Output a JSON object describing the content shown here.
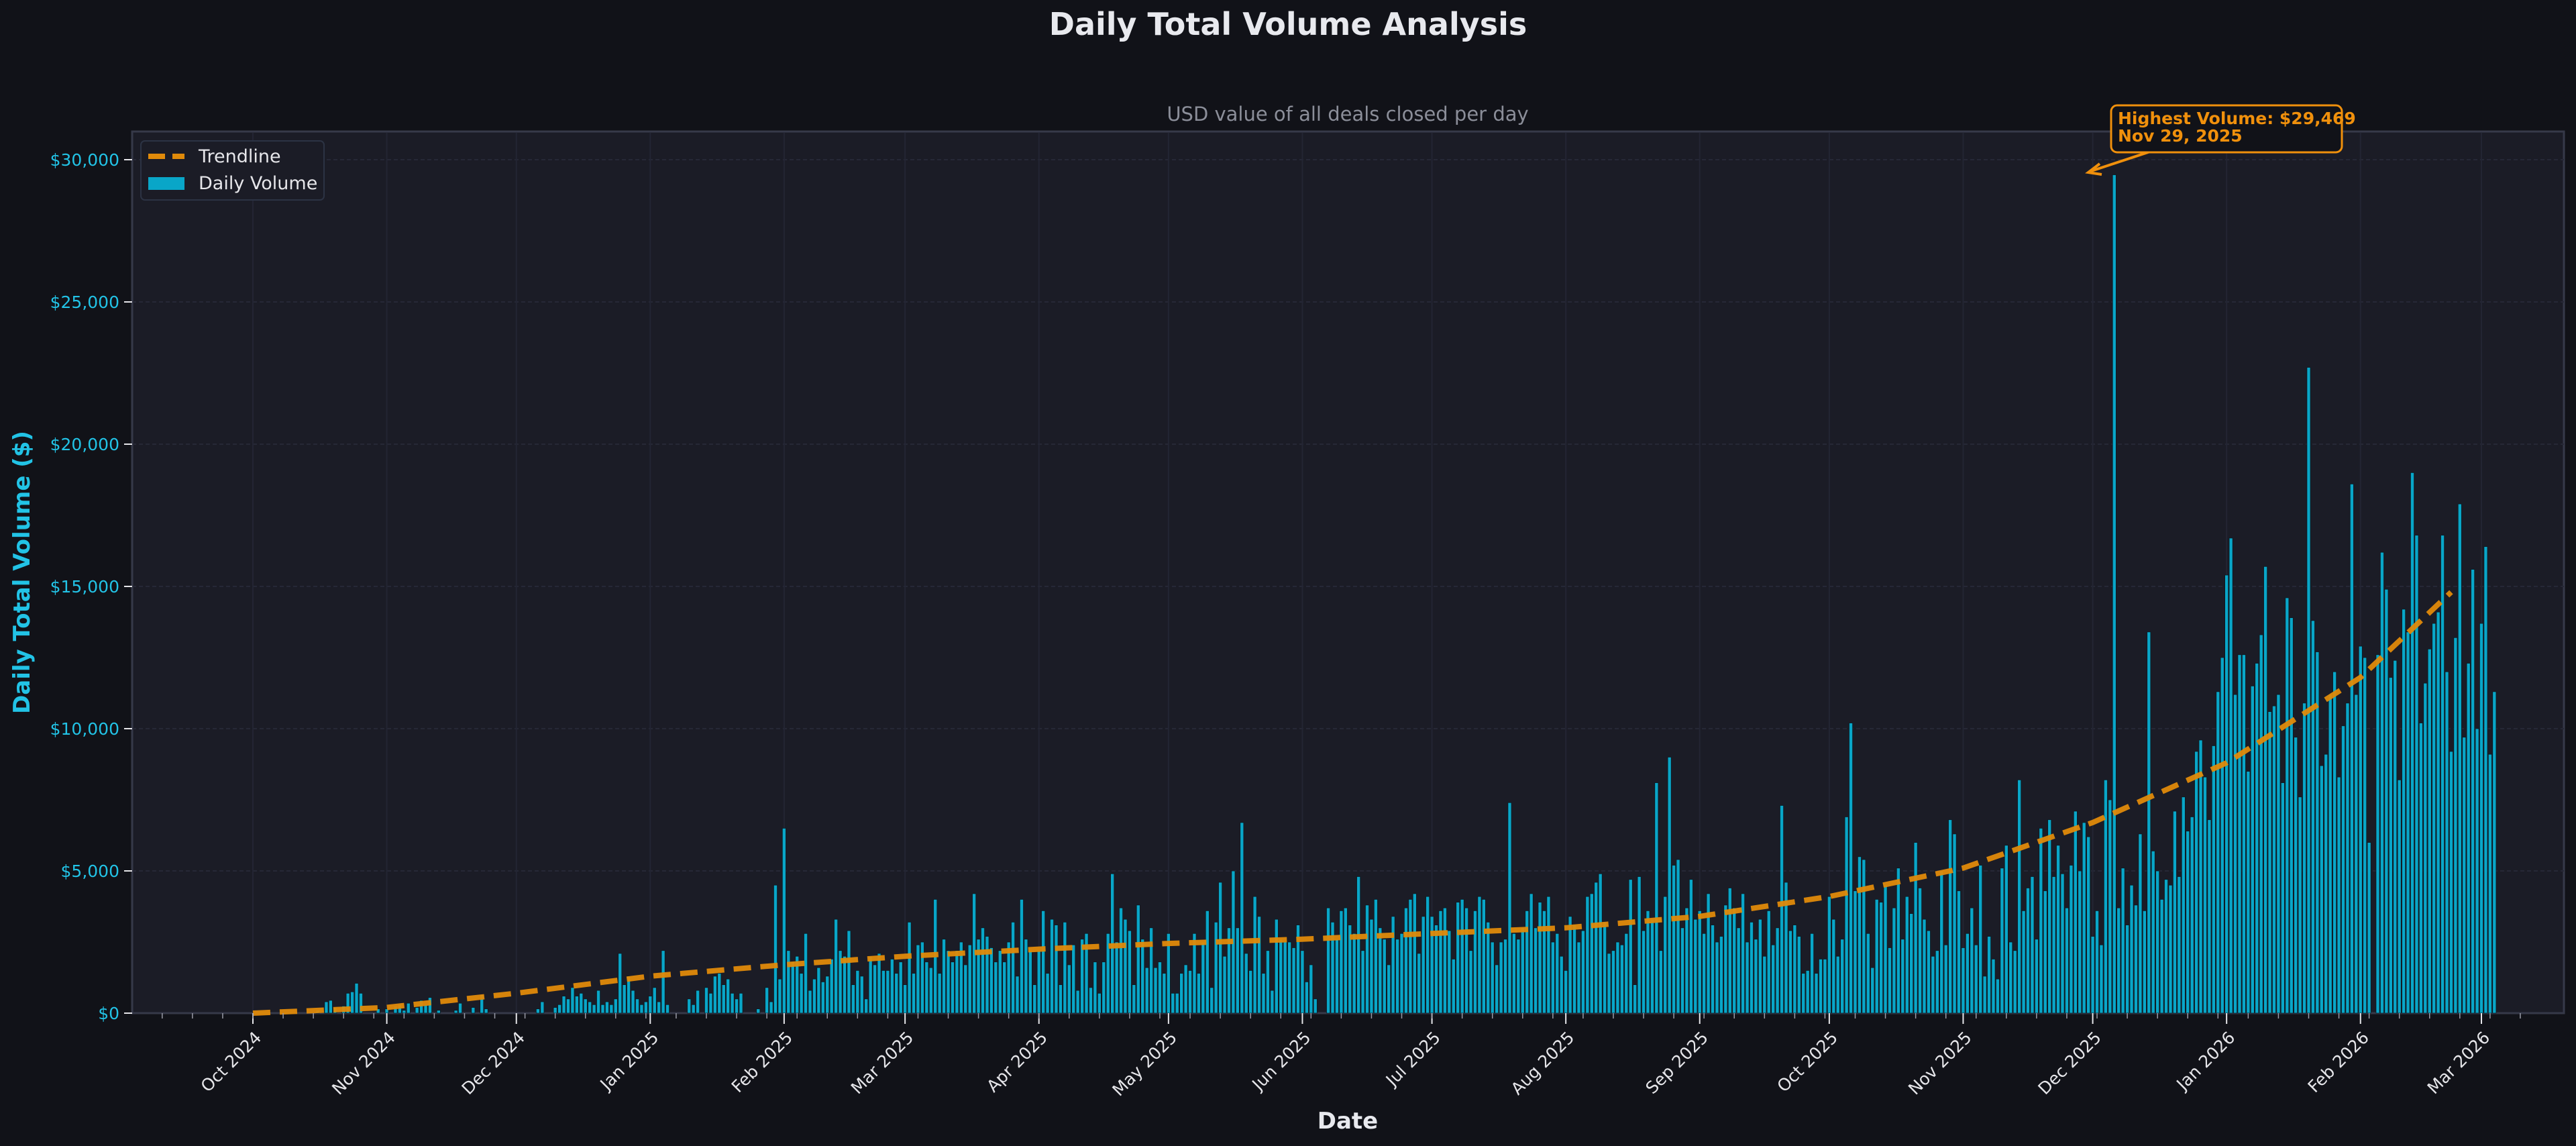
{
  "title": "Daily Total Volume Analysis",
  "subtitle": "USD value of all deals closed per day",
  "xlabel": "Date",
  "ylabel": "Daily Total Volume ($)",
  "legend": {
    "trend_label": "Trendline",
    "bars_label": "Daily Volume"
  },
  "annotation": {
    "line1": "Highest Volume: $29,469",
    "line2": "Nov 29, 2025"
  },
  "colors": {
    "background": "#111218",
    "plot_background": "#1b1c26",
    "bar": "#09a6c8",
    "trend": "#e08a0a",
    "annotation": "#f0900c",
    "ytick": "#22c3e6"
  },
  "chart_data": {
    "type": "bar",
    "title": "Daily Total Volume Analysis",
    "subtitle": "USD value of all deals closed per day",
    "xlabel": "Date",
    "ylabel": "Daily Total Volume ($)",
    "ylim": [
      0,
      31000
    ],
    "yticks": [
      0,
      5000,
      10000,
      15000,
      20000,
      25000,
      30000
    ],
    "ytick_labels": [
      "$0",
      "$5,000",
      "$10,000",
      "$15,000",
      "$20,000",
      "$25,000",
      "$30,000"
    ],
    "xticks": [
      "Oct 2024",
      "Nov 2024",
      "Dec 2024",
      "Jan 2025",
      "Feb 2025",
      "Mar 2025",
      "Apr 2025",
      "May 2025",
      "Jun 2025",
      "Jul 2025",
      "Aug 2025",
      "Sep 2025",
      "Oct 2025",
      "Nov 2025",
      "Dec 2025",
      "Jan 2026",
      "Feb 2026",
      "Mar 2026"
    ],
    "xtick_days": [
      0,
      31,
      61,
      92,
      123,
      151,
      182,
      212,
      243,
      273,
      304,
      335,
      365,
      396,
      426,
      457,
      488,
      516
    ],
    "x_origin": "2024-10-01",
    "grid": true,
    "legend_position": "upper left",
    "series": [
      {
        "name": "Daily Volume",
        "type": "bar",
        "start_day": 12,
        "values": [
          0,
          0,
          0,
          100,
          0,
          400,
          450,
          200,
          0,
          250,
          700,
          750,
          1050,
          700,
          0,
          0,
          0,
          150,
          0,
          150,
          0,
          250,
          300,
          100,
          350,
          0,
          200,
          450,
          300,
          550,
          0,
          100,
          0,
          0,
          0,
          100,
          350,
          0,
          0,
          200,
          0,
          650,
          150,
          0,
          0,
          0,
          0,
          0,
          0,
          0,
          0,
          0,
          0,
          0,
          150,
          400,
          0,
          0,
          200,
          300,
          600,
          500,
          900,
          600,
          700,
          500,
          400,
          300,
          800,
          300,
          400,
          300,
          500,
          2100,
          1000,
          1300,
          800,
          500,
          300,
          400,
          600,
          900,
          400,
          2200,
          300,
          0,
          0,
          0,
          0,
          500,
          300,
          800,
          0,
          900,
          700,
          1300,
          1400,
          1000,
          1200,
          700,
          500,
          700,
          0,
          0,
          0,
          150,
          0,
          900,
          400,
          4500,
          1200,
          6500,
          2200,
          1800,
          2000,
          1400,
          2800,
          800,
          1200,
          1600,
          1100,
          1300,
          1900,
          3300,
          2200,
          2000,
          2900,
          1000,
          1500,
          1300,
          500,
          2000,
          1700,
          2100,
          1500,
          1500,
          1900,
          1400,
          1800,
          1000,
          3200,
          1400,
          2400,
          2500,
          1800,
          1600,
          4000,
          1400,
          2600,
          2200,
          1800,
          2200,
          2500,
          1700,
          2400,
          4200,
          2600,
          3000,
          2700,
          2300,
          1800,
          2200,
          1800,
          2500,
          3200,
          1300,
          4000,
          2600,
          2200,
          1000,
          2200,
          3600,
          1400,
          3300,
          3100,
          1000,
          3200,
          1700,
          2400,
          800,
          2600,
          2800,
          900,
          1800,
          700,
          1800,
          2800,
          4900,
          2500,
          3700,
          3300,
          2900,
          1000,
          3800,
          2600,
          1600,
          3000,
          1600,
          1800,
          1400,
          2800,
          700,
          700,
          1400,
          1700,
          1500,
          2800,
          1400,
          2500,
          3600,
          900,
          3200,
          4600,
          2000,
          3000,
          5000,
          3000,
          6700,
          2100,
          1500,
          4100,
          3400,
          1400,
          2200,
          800,
          3300,
          2600,
          2500,
          2500,
          2300,
          3100,
          2200,
          1100,
          1700,
          500,
          0,
          0,
          3700,
          3200,
          2600,
          3600,
          3700,
          3100,
          2800,
          4800,
          2200,
          3800,
          3300,
          4000,
          3000,
          2600,
          1700,
          3400,
          2600,
          2800,
          3700,
          4000,
          4200,
          2100,
          3400,
          4100,
          3400,
          3100,
          3600,
          3700,
          2900,
          1900,
          3900,
          4000,
          3700,
          2200,
          3600,
          4100,
          4000,
          3200,
          2500,
          1700,
          2500,
          2600,
          7400,
          2800,
          2600,
          3000,
          3600,
          4200,
          3000,
          3900,
          3600,
          4100,
          2500,
          2800,
          2000,
          1500,
          3400,
          3100,
          2500,
          2900,
          4100,
          4200,
          4600,
          4900,
          3200,
          2100,
          2200,
          2500,
          2400,
          2800,
          4700,
          1000,
          4800,
          2900,
          3600,
          3300,
          8100,
          2200,
          4100,
          9000,
          5200,
          5400,
          3000,
          3700,
          4700,
          3300,
          3600,
          2800,
          4200,
          3100,
          2500,
          2700,
          3800,
          4400,
          3700,
          3000,
          4200,
          2500,
          3200,
          2600,
          3300,
          2000,
          3600,
          2400,
          3000,
          7300,
          4600,
          2900,
          3100,
          2700,
          1400,
          1500,
          2800,
          1400,
          1900,
          1900,
          4100,
          3300,
          2000,
          2600,
          6900,
          10200,
          4300,
          5500,
          5400,
          2800,
          1600,
          4000,
          3900,
          4500,
          2300,
          3700,
          5100,
          2600,
          4100,
          3500,
          6000,
          4400,
          3300,
          2900,
          2000,
          2200,
          5000,
          2400,
          6800,
          6300,
          4300,
          2300,
          2800,
          3700,
          2400,
          5200,
          1300,
          2700,
          1900,
          1200,
          5100,
          5900,
          2500,
          2200,
          8200,
          3600,
          4400,
          4800,
          2600,
          6500,
          4300,
          6800,
          4800,
          5900,
          4900,
          3700,
          5200,
          7100,
          5000,
          6700,
          6200,
          2700,
          3600,
          2400,
          8200,
          7500,
          29469,
          3700,
          5100,
          3100,
          4500,
          3800,
          6300,
          3600,
          13400,
          5700,
          5000,
          4000,
          4700,
          4500,
          7100,
          4800,
          7600,
          6400,
          6900,
          9200,
          9600,
          8300,
          6800,
          9400,
          11300,
          12500,
          15400,
          16700,
          11200,
          12600,
          12600,
          8500,
          11500,
          12300,
          13300,
          15700,
          10600,
          10800,
          11200,
          8100,
          14600,
          13900,
          9700,
          7600,
          10900,
          22700,
          13800,
          12700,
          8700,
          9100,
          11200,
          12000,
          8300,
          10100,
          10900,
          18600,
          11200,
          12900,
          12500,
          6000,
          0,
          12600,
          16200,
          14900,
          11800,
          12400,
          8200,
          14200,
          13400,
          19000,
          16800,
          10200,
          11600,
          12800,
          13700,
          14100,
          16800,
          12000,
          9200,
          13200,
          17900,
          9700,
          12300,
          15600,
          10000,
          13700,
          16400,
          9100,
          11300
        ]
      },
      {
        "name": "Trendline",
        "type": "line",
        "style": "dashed",
        "points": [
          [
            0,
            0
          ],
          [
            31,
            200
          ],
          [
            61,
            700
          ],
          [
            92,
            1300
          ],
          [
            123,
            1700
          ],
          [
            151,
            2000
          ],
          [
            182,
            2250
          ],
          [
            212,
            2450
          ],
          [
            243,
            2600
          ],
          [
            273,
            2800
          ],
          [
            304,
            3000
          ],
          [
            335,
            3400
          ],
          [
            365,
            4100
          ],
          [
            396,
            5100
          ],
          [
            426,
            6700
          ],
          [
            457,
            8800
          ],
          [
            488,
            11800
          ],
          [
            509,
            14800
          ]
        ]
      }
    ],
    "annotations": [
      {
        "text": "Highest Volume: $29,469\nNov 29, 2025",
        "target_day": 424,
        "target_value": 29469
      }
    ]
  }
}
